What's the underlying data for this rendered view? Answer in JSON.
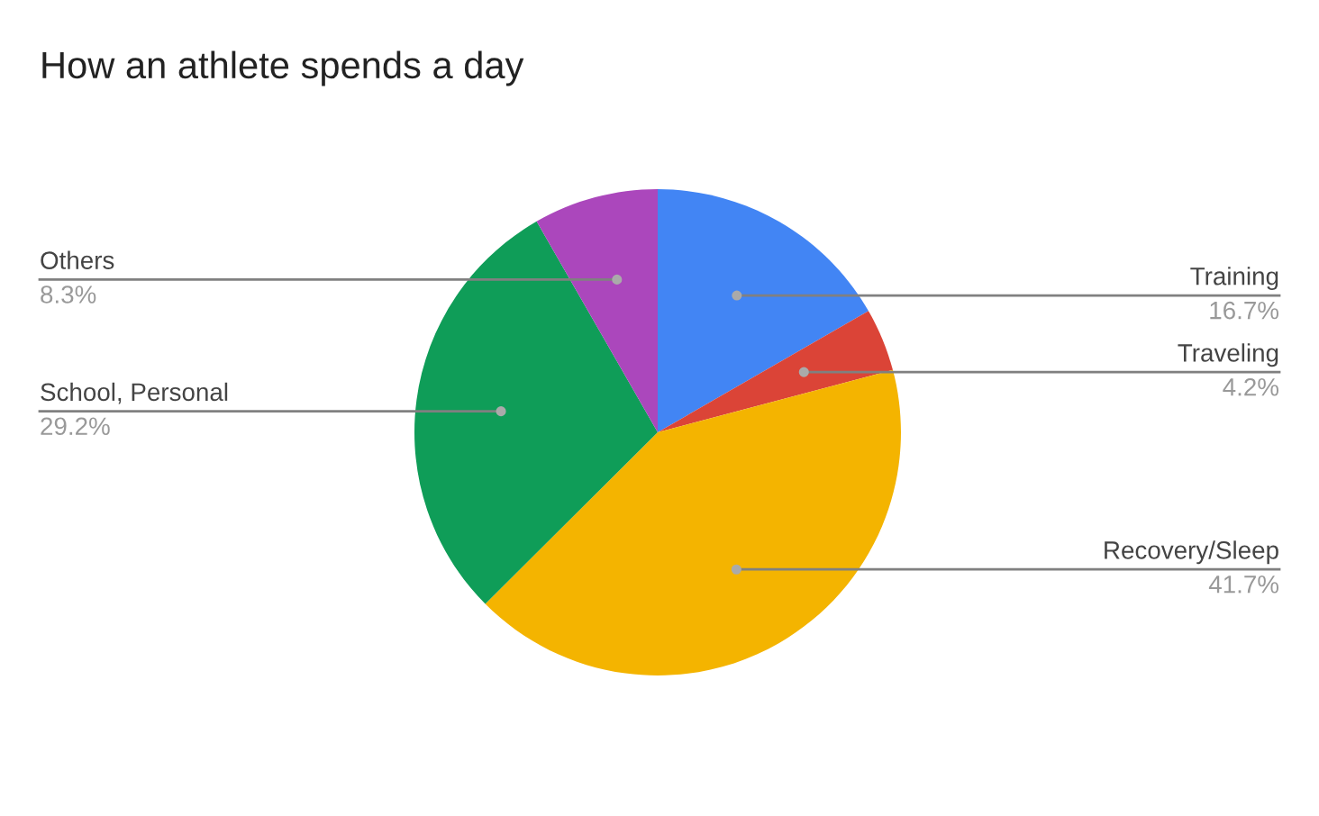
{
  "chart_data": {
    "type": "pie",
    "title": "How an athlete spends a day",
    "categories": [
      "Training",
      "Traveling",
      "Recovery/Sleep",
      "School, Personal",
      "Others"
    ],
    "values": [
      16.7,
      4.2,
      41.7,
      29.2,
      8.3
    ],
    "value_labels": [
      "16.7%",
      "4.2%",
      "41.7%",
      "29.2%",
      "8.3%"
    ],
    "colors": [
      "#4285f4",
      "#db4437",
      "#f4b400",
      "#0f9d58",
      "#ab47bc"
    ],
    "legend": false
  }
}
